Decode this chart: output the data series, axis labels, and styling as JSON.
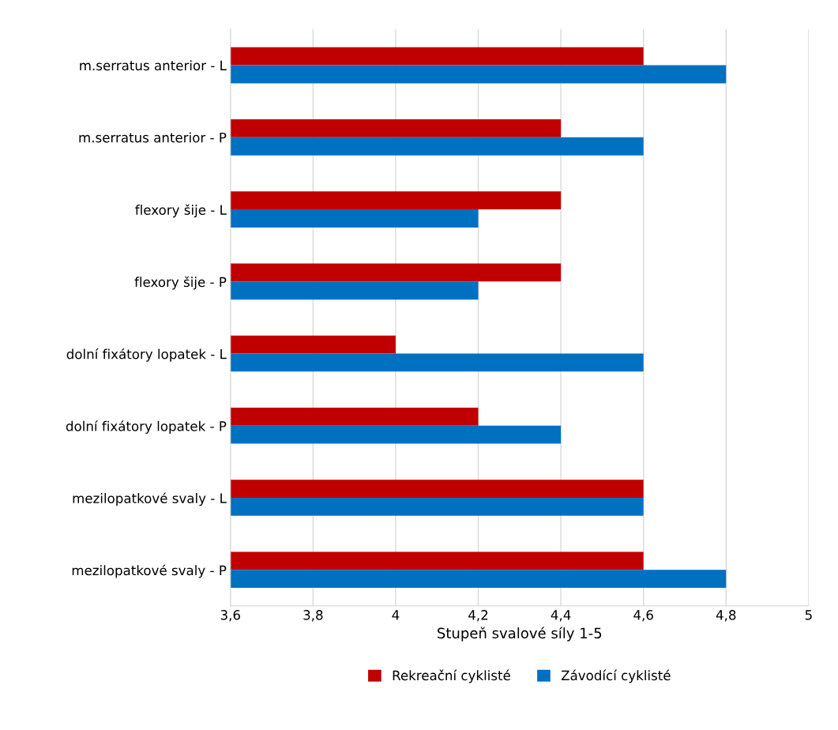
{
  "chart_data": {
    "type": "bar",
    "orientation": "horizontal",
    "xlabel": "Stupeň svalové síly 1-5",
    "categories": [
      "m.serratus anterior - L",
      "m.serratus anterior - P",
      "flexory šije - L",
      "flexory šije - P",
      "dolní fixátory lopatek - L",
      "dolní fixátory lopatek - P",
      "mezilopatkové svaly - L",
      "mezilopatkové svaly - P"
    ],
    "series": [
      {
        "name": "Rekreační cyklisté",
        "color": "#c00000",
        "values": [
          4.6,
          4.4,
          4.4,
          4.4,
          4.0,
          4.2,
          4.6,
          4.6
        ]
      },
      {
        "name": "Závodící cyklisté",
        "color": "#0070c0",
        "values": [
          4.8,
          4.6,
          4.2,
          4.2,
          4.6,
          4.4,
          4.6,
          4.8
        ]
      }
    ],
    "xlim": [
      3.6,
      5
    ],
    "xticks": [
      {
        "value": 3.6,
        "label": "3,6"
      },
      {
        "value": 3.8,
        "label": "3,8"
      },
      4,
      {
        "value": 4.2,
        "label": "4,2"
      },
      {
        "value": 4.4,
        "label": "4,4"
      },
      {
        "value": 4.6,
        "label": "4,6"
      },
      {
        "value": 4.8,
        "label": "4,8"
      },
      5
    ],
    "grid": "x",
    "legend": "bottom"
  }
}
